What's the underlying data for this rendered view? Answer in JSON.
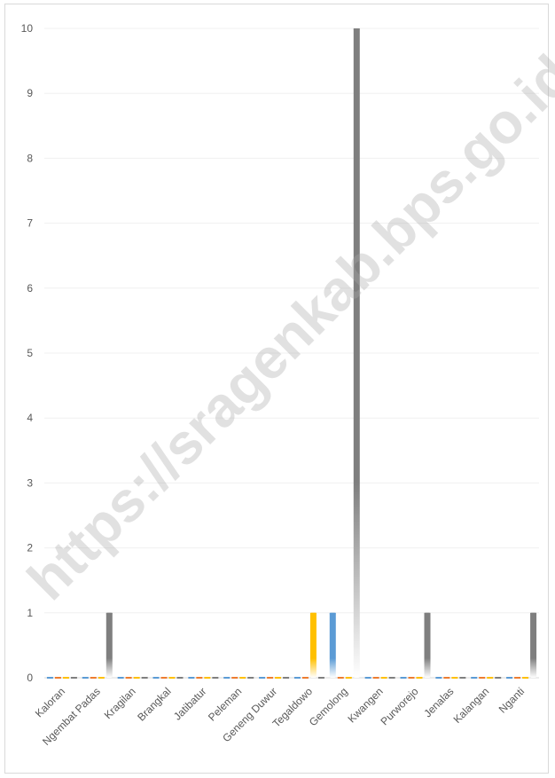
{
  "watermark": "https://sragenkab.bps.go.id",
  "chart_data": {
    "type": "bar",
    "categories": [
      "Kaloran",
      "Ngembat Padas",
      "Kragilan",
      "Brangkal",
      "Jatibatur",
      "Peleman",
      "Geneng Duwur",
      "Tegaldowo",
      "Gemolong",
      "Kwangen",
      "Purworejo",
      "Jenalas",
      "Kalangan",
      "Nganti"
    ],
    "series": [
      {
        "color": "#5b9bd5",
        "values": [
          0,
          0,
          0,
          0,
          0,
          0,
          0,
          0,
          1,
          0,
          0,
          0,
          0,
          0
        ]
      },
      {
        "color": "#ed7d31",
        "values": [
          0,
          0,
          0,
          0,
          0,
          0,
          0,
          0,
          0,
          0,
          0,
          0,
          0,
          0
        ]
      },
      {
        "color": "#ffc000",
        "values": [
          0,
          0,
          0,
          0,
          0,
          0,
          0,
          1,
          0,
          0,
          0,
          0,
          0,
          0
        ]
      },
      {
        "color": "#7f7f7f",
        "values": [
          0,
          1,
          0,
          0,
          0,
          0,
          0,
          0,
          10,
          0,
          1,
          0,
          0,
          1
        ]
      }
    ],
    "yticks": [
      "0",
      "1",
      "2",
      "3",
      "4",
      "5",
      "6",
      "7",
      "8",
      "9",
      "10"
    ],
    "ylim": [
      0,
      10
    ],
    "grid": true,
    "title": "",
    "xlabel": "",
    "ylabel": ""
  }
}
